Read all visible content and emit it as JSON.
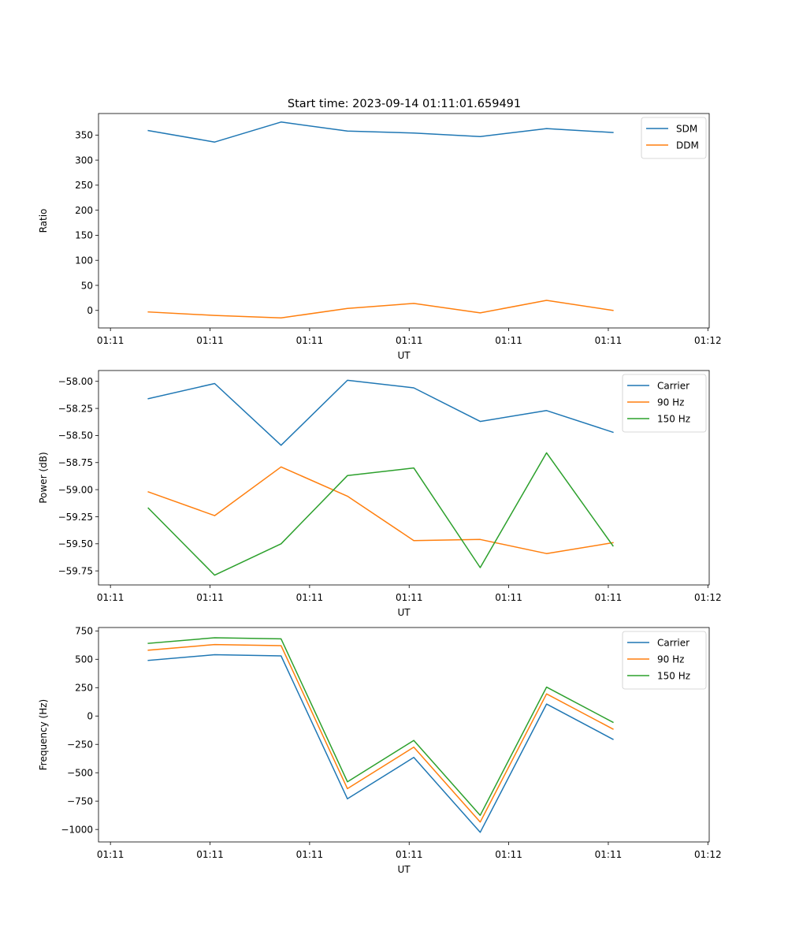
{
  "figure": {
    "title": "Start time: 2023-09-14 01:11:01.659491"
  },
  "colors": {
    "blue": "#1f77b4",
    "orange": "#ff7f0e",
    "green": "#2ca02c"
  },
  "chart_data": [
    {
      "type": "line",
      "title": "Start time: 2023-09-14 01:11:01.659491",
      "xlabel": "UT",
      "ylabel": "Ratio",
      "x": [
        0,
        1,
        2,
        3,
        4,
        5,
        6,
        7
      ],
      "xlim": [
        -0.75,
        8.45
      ],
      "xticks": [
        -0.57,
        0.93,
        2.43,
        3.93,
        5.43,
        6.93,
        8.43
      ],
      "xtick_labels": [
        "01:11",
        "01:11",
        "01:11",
        "01:11",
        "01:11",
        "01:11",
        "01:12"
      ],
      "ylim": [
        -35,
        393
      ],
      "yticks": [
        0,
        50,
        100,
        150,
        200,
        250,
        300,
        350
      ],
      "ytick_labels": [
        "0",
        "50",
        "100",
        "150",
        "200",
        "250",
        "300",
        "350"
      ],
      "legend_position": "top-right",
      "series": [
        {
          "name": "SDM",
          "color": "#1f77b4",
          "values": [
            359,
            336,
            376,
            358,
            354,
            347,
            363,
            355
          ]
        },
        {
          "name": "DDM",
          "color": "#ff7f0e",
          "values": [
            -3,
            -10,
            -15,
            4,
            14,
            -5,
            20,
            0
          ]
        }
      ]
    },
    {
      "type": "line",
      "title": "",
      "xlabel": "UT",
      "ylabel": "Power (dB)",
      "x": [
        0,
        1,
        2,
        3,
        4,
        5,
        6,
        7
      ],
      "xlim": [
        -0.75,
        8.45
      ],
      "xticks": [
        -0.57,
        0.93,
        2.43,
        3.93,
        5.43,
        6.93,
        8.43
      ],
      "xtick_labels": [
        "01:11",
        "01:11",
        "01:11",
        "01:11",
        "01:11",
        "01:11",
        "01:12"
      ],
      "ylim": [
        -59.88,
        -57.9
      ],
      "yticks": [
        -59.75,
        -59.5,
        -59.25,
        -59.0,
        -58.75,
        -58.5,
        -58.25,
        -58.0
      ],
      "ytick_labels": [
        "−59.75",
        "−59.50",
        "−59.25",
        "−59.00",
        "−58.75",
        "−58.50",
        "−58.25",
        "−58.00"
      ],
      "legend_position": "top-right",
      "series": [
        {
          "name": "Carrier",
          "color": "#1f77b4",
          "values": [
            -58.16,
            -58.02,
            -58.59,
            -57.99,
            -58.06,
            -58.37,
            -58.27,
            -58.47
          ]
        },
        {
          "name": "90 Hz",
          "color": "#ff7f0e",
          "values": [
            -59.02,
            -59.24,
            -58.79,
            -59.06,
            -59.47,
            -59.46,
            -59.59,
            -59.49
          ]
        },
        {
          "name": "150 Hz",
          "color": "#2ca02c",
          "values": [
            -59.17,
            -59.79,
            -59.5,
            -58.87,
            -58.8,
            -59.72,
            -58.66,
            -59.52
          ]
        }
      ]
    },
    {
      "type": "line",
      "title": "",
      "xlabel": "UT",
      "ylabel": "Frequency (Hz)",
      "x": [
        0,
        1,
        2,
        3,
        4,
        5,
        6,
        7
      ],
      "xlim": [
        -0.75,
        8.45
      ],
      "xticks": [
        -0.57,
        0.93,
        2.43,
        3.93,
        5.43,
        6.93,
        8.43
      ],
      "xtick_labels": [
        "01:11",
        "01:11",
        "01:11",
        "01:11",
        "01:11",
        "01:11",
        "01:12"
      ],
      "ylim": [
        -1110,
        780
      ],
      "yticks": [
        -1000,
        -750,
        -500,
        -250,
        0,
        250,
        500,
        750
      ],
      "ytick_labels": [
        "−1000",
        "−750",
        "−500",
        "−250",
        "0",
        "250",
        "500",
        "750"
      ],
      "legend_position": "top-right",
      "series": [
        {
          "name": "Carrier",
          "color": "#1f77b4",
          "values": [
            490,
            540,
            530,
            -730,
            -365,
            -1025,
            105,
            -205
          ]
        },
        {
          "name": "90 Hz",
          "color": "#ff7f0e",
          "values": [
            580,
            630,
            620,
            -640,
            -275,
            -935,
            195,
            -115
          ]
        },
        {
          "name": "150 Hz",
          "color": "#2ca02c",
          "values": [
            640,
            690,
            680,
            -580,
            -215,
            -875,
            255,
            -55
          ]
        }
      ]
    }
  ]
}
